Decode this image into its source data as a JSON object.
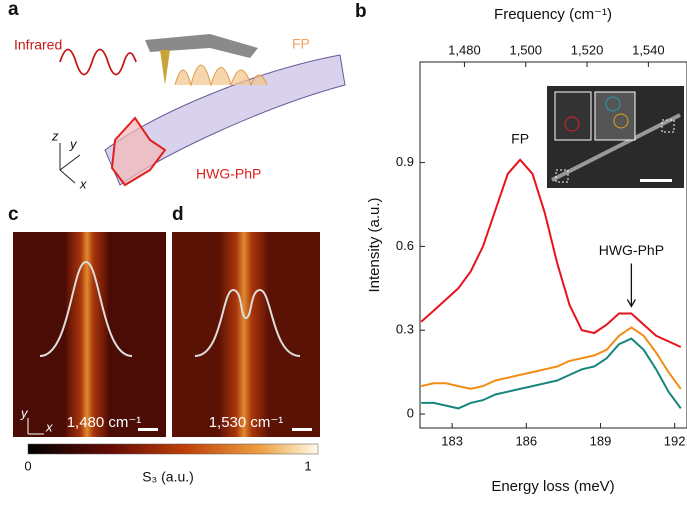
{
  "chart_data": {
    "type": "line",
    "panel_label": "b",
    "xlabel": "Energy loss (meV)",
    "ylabel": "Intensity (a.u.)",
    "x2label": "Frequency (cm⁻¹)",
    "x": [
      181.75,
      182.25,
      182.75,
      183.25,
      183.75,
      184.25,
      184.75,
      185.25,
      185.75,
      186.25,
      186.75,
      187.25,
      187.75,
      188.25,
      188.75,
      189.25,
      189.75,
      190.25,
      190.75,
      191.25,
      191.75,
      192.25
    ],
    "series": [
      {
        "color": "#e8141b",
        "values": [
          0.33,
          0.37,
          0.41,
          0.45,
          0.51,
          0.6,
          0.73,
          0.86,
          0.91,
          0.86,
          0.72,
          0.54,
          0.39,
          0.3,
          0.29,
          0.32,
          0.36,
          0.36,
          0.32,
          0.28,
          0.26,
          0.24
        ]
      },
      {
        "color": "#f28c14",
        "values": [
          0.1,
          0.11,
          0.11,
          0.1,
          0.09,
          0.1,
          0.12,
          0.13,
          0.14,
          0.15,
          0.16,
          0.17,
          0.19,
          0.2,
          0.21,
          0.23,
          0.28,
          0.31,
          0.28,
          0.22,
          0.15,
          0.09
        ]
      },
      {
        "color": "#17867c",
        "values": [
          0.04,
          0.04,
          0.03,
          0.02,
          0.04,
          0.05,
          0.07,
          0.08,
          0.09,
          0.1,
          0.11,
          0.12,
          0.14,
          0.16,
          0.17,
          0.2,
          0.25,
          0.27,
          0.23,
          0.16,
          0.08,
          0.02
        ]
      }
    ],
    "xlim": [
      181.7,
      192.5
    ],
    "xticks": [
      183,
      186,
      189,
      192
    ],
    "x2lim": [
      1465.5,
      1552.6
    ],
    "x2ticks": [
      {
        "value": 1480,
        "label": "1,480"
      },
      {
        "value": 1500,
        "label": "1,500"
      },
      {
        "value": 1520,
        "label": "1,520"
      },
      {
        "value": 1540,
        "label": "1,540"
      }
    ],
    "ylim": [
      -0.05,
      1.26
    ],
    "yticks": [
      0,
      0.3,
      0.6,
      0.9
    ],
    "annotations": [
      "FP",
      "HWG-PhP"
    ]
  },
  "panel_a": {
    "label": "a",
    "infrared": "Infrared",
    "fp": "FP",
    "mode": "HWG-PhP",
    "axes": [
      "z",
      "y",
      "x"
    ]
  },
  "panel_c": {
    "label": "c",
    "frequency": "1,480 cm⁻¹",
    "axes": [
      "y",
      "x"
    ]
  },
  "panel_d": {
    "label": "d",
    "frequency": "1,530 cm⁻¹"
  },
  "colorbar": {
    "min": "0",
    "max": "1",
    "label": "S₃ (a.u.)"
  }
}
